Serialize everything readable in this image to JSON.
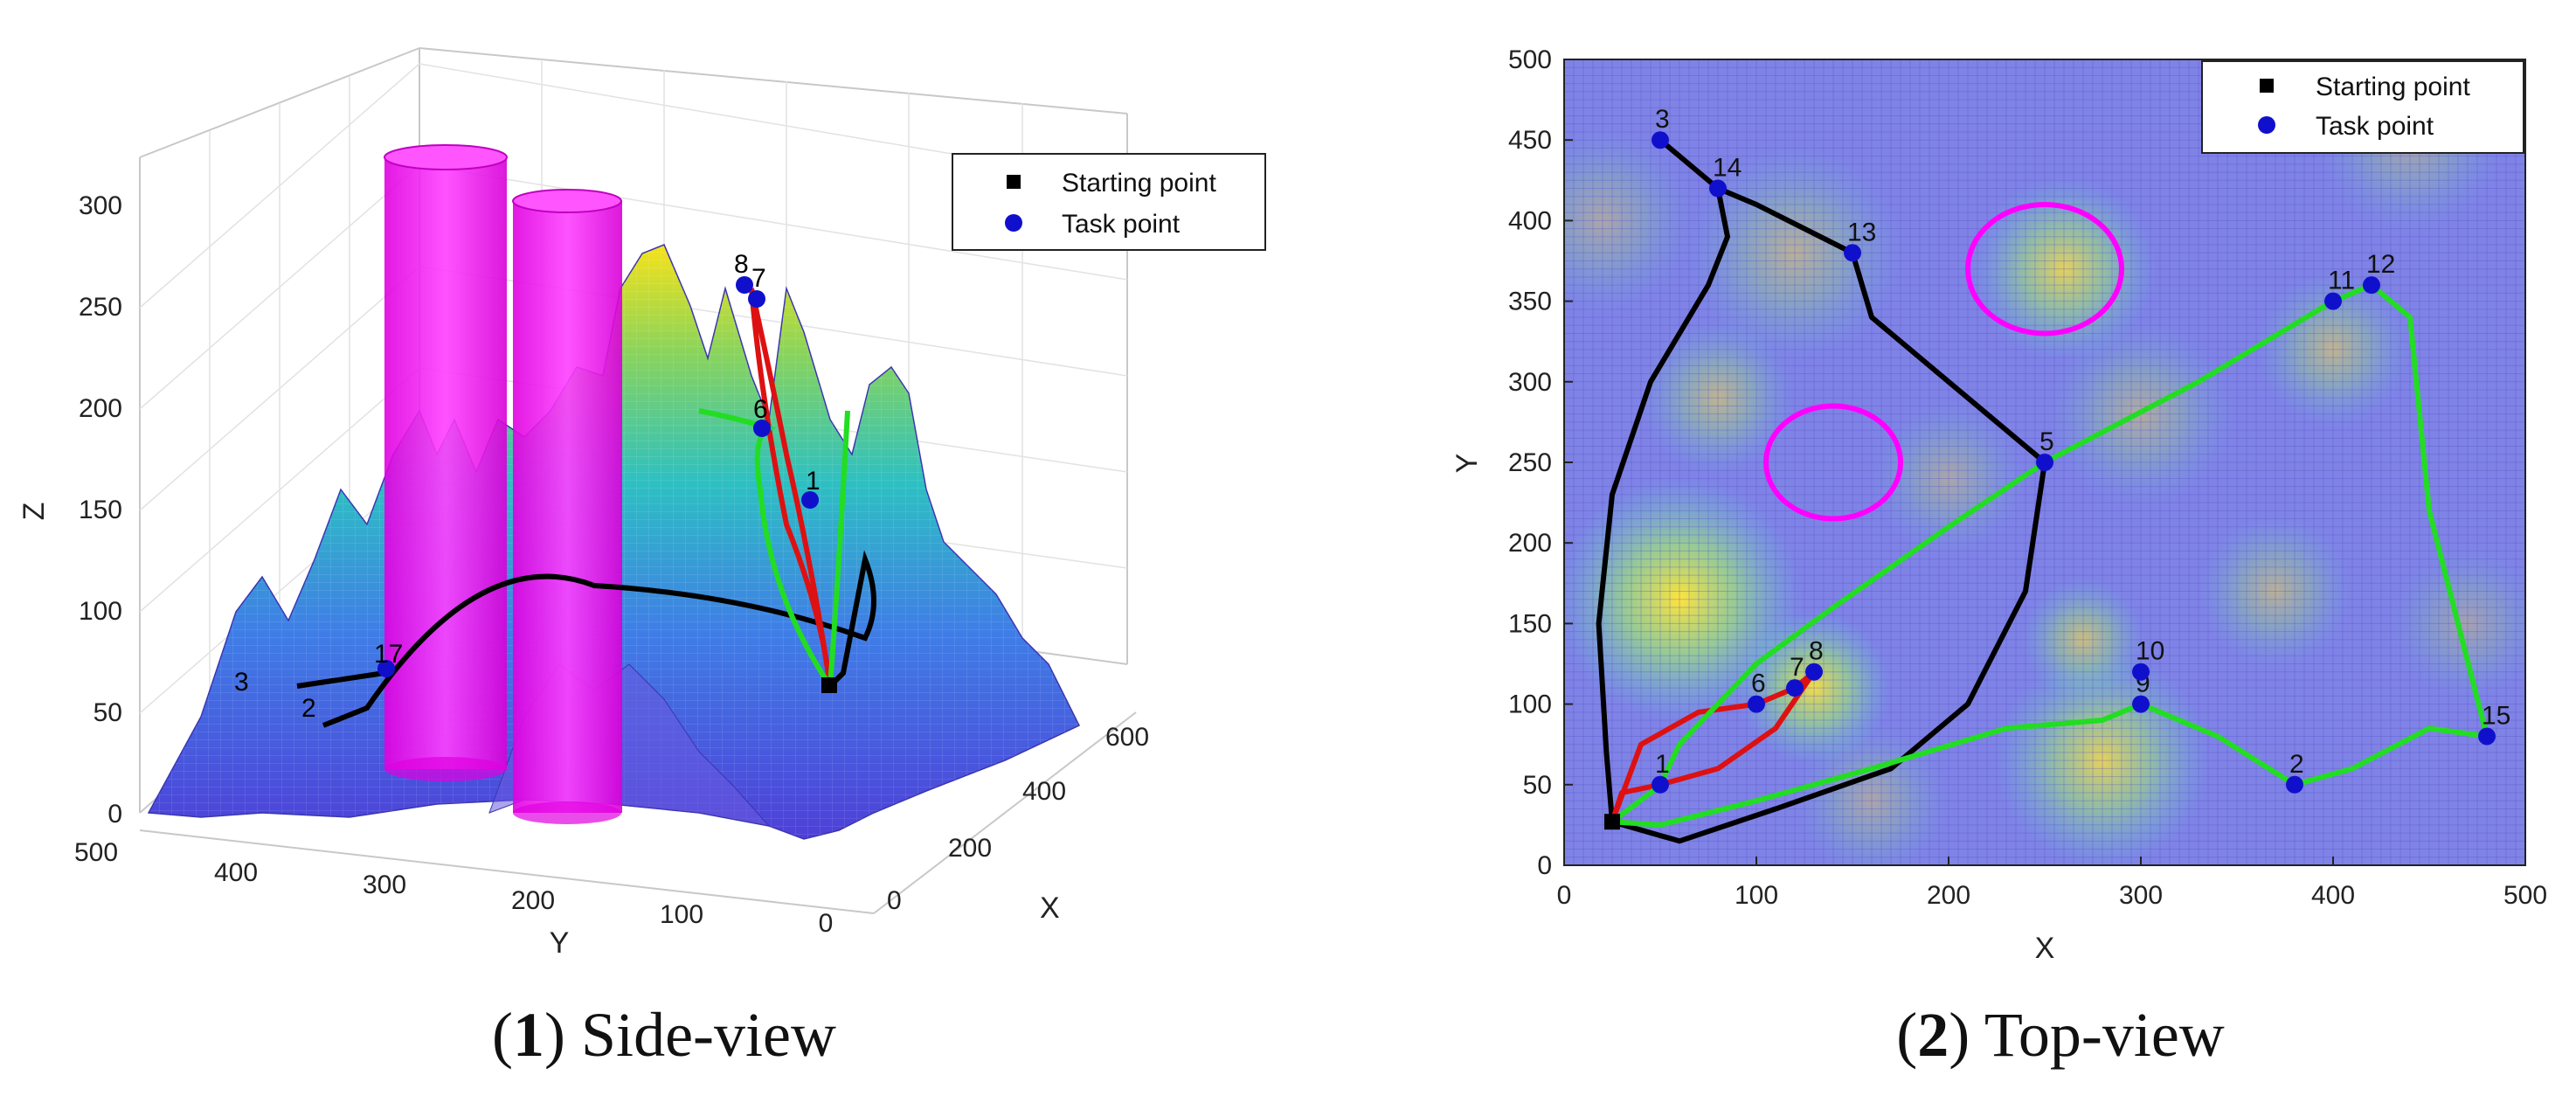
{
  "chart_data": [
    {
      "type": "surface-3d",
      "caption_num": "1",
      "caption_text": " Side-view",
      "xlabel": "X",
      "ylabel": "Y",
      "zlabel": "Z",
      "x_ticks": [
        "0",
        "200",
        "400",
        "600"
      ],
      "y_ticks": [
        "500",
        "400",
        "300",
        "200",
        "100",
        "0"
      ],
      "z_ticks": [
        "0",
        "50",
        "100",
        "150",
        "200",
        "250",
        "300"
      ],
      "zlim": [
        0,
        300
      ],
      "legend": [
        {
          "label": "Starting point",
          "marker": "square",
          "color": "#000000"
        },
        {
          "label": "Task point",
          "marker": "circle",
          "color": "#0000cc"
        }
      ],
      "point_labels": [
        "8",
        "7",
        "6",
        "1",
        "17",
        "2",
        "3"
      ],
      "obstacles": [
        {
          "shape": "cylinder",
          "color": "#ff00ff"
        },
        {
          "shape": "cylinder",
          "color": "#ff00ff"
        }
      ],
      "colors": {
        "surface_low": "#4b3fd6",
        "surface_mid": "#29b6c6",
        "surface_high": "#f5e51a",
        "path_black": "#000000",
        "path_red": "#dd1111",
        "path_green": "#22dd22"
      }
    },
    {
      "type": "heatmap",
      "caption_num": "2",
      "caption_text": " Top-view",
      "xlabel": "X",
      "ylabel": "Y",
      "xlim": [
        0,
        500
      ],
      "ylim": [
        0,
        500
      ],
      "x_ticks": [
        "0",
        "100",
        "200",
        "300",
        "400",
        "500"
      ],
      "y_ticks": [
        "0",
        "50",
        "100",
        "150",
        "200",
        "250",
        "300",
        "350",
        "400",
        "450",
        "500"
      ],
      "grid": true,
      "legend_position": "top-right",
      "legend": [
        {
          "label": "Starting point",
          "marker": "square",
          "color": "#000000"
        },
        {
          "label": "Task point",
          "marker": "circle",
          "color": "#0000cc"
        }
      ],
      "starting_point": {
        "x": 25,
        "y": 27
      },
      "task_points": [
        {
          "label": "1",
          "x": 50,
          "y": 50
        },
        {
          "label": "2",
          "x": 380,
          "y": 50
        },
        {
          "label": "3",
          "x": 50,
          "y": 450
        },
        {
          "label": "5",
          "x": 250,
          "y": 250
        },
        {
          "label": "6",
          "x": 100,
          "y": 100
        },
        {
          "label": "7",
          "x": 120,
          "y": 110
        },
        {
          "label": "8",
          "x": 130,
          "y": 120
        },
        {
          "label": "9",
          "x": 300,
          "y": 100
        },
        {
          "label": "10",
          "x": 300,
          "y": 120
        },
        {
          "label": "11",
          "x": 400,
          "y": 350
        },
        {
          "label": "12",
          "x": 420,
          "y": 360
        },
        {
          "label": "13",
          "x": 150,
          "y": 380
        },
        {
          "label": "14",
          "x": 80,
          "y": 420
        },
        {
          "label": "15",
          "x": 480,
          "y": 80
        }
      ],
      "obstacles": [
        {
          "shape": "circle",
          "cx": 140,
          "cy": 250,
          "r": 35,
          "color": "#ff00ff"
        },
        {
          "shape": "circle",
          "cx": 250,
          "cy": 370,
          "r": 40,
          "color": "#ff00ff"
        }
      ],
      "hotspots": [
        {
          "x": 60,
          "y": 165,
          "r": 40,
          "intensity": 1.0
        },
        {
          "x": 130,
          "y": 110,
          "r": 25,
          "intensity": 0.9
        },
        {
          "x": 280,
          "y": 65,
          "r": 35,
          "intensity": 0.8
        },
        {
          "x": 260,
          "y": 370,
          "r": 30,
          "intensity": 0.8
        },
        {
          "x": 270,
          "y": 140,
          "r": 20,
          "intensity": 0.6
        },
        {
          "x": 400,
          "y": 320,
          "r": 25,
          "intensity": 0.5
        },
        {
          "x": 370,
          "y": 170,
          "r": 25,
          "intensity": 0.45
        },
        {
          "x": 300,
          "y": 280,
          "r": 30,
          "intensity": 0.4
        },
        {
          "x": 120,
          "y": 380,
          "r": 35,
          "intensity": 0.45
        },
        {
          "x": 80,
          "y": 290,
          "r": 25,
          "intensity": 0.5
        },
        {
          "x": 20,
          "y": 400,
          "r": 30,
          "intensity": 0.35
        },
        {
          "x": 440,
          "y": 450,
          "r": 30,
          "intensity": 0.35
        },
        {
          "x": 200,
          "y": 240,
          "r": 25,
          "intensity": 0.35
        },
        {
          "x": 160,
          "y": 40,
          "r": 25,
          "intensity": 0.35
        },
        {
          "x": 470,
          "y": 150,
          "r": 25,
          "intensity": 0.3
        }
      ],
      "paths": [
        {
          "color": "#000000",
          "points": [
            [
              25,
              27
            ],
            [
              60,
              15
            ],
            [
              110,
              35
            ],
            [
              170,
              60
            ],
            [
              210,
              100
            ],
            [
              240,
              170
            ],
            [
              250,
              250
            ],
            [
              200,
              300
            ],
            [
              160,
              340
            ],
            [
              150,
              380
            ],
            [
              100,
              410
            ],
            [
              80,
              420
            ],
            [
              50,
              450
            ],
            [
              80,
              420
            ],
            [
              85,
              390
            ],
            [
              75,
              360
            ],
            [
              45,
              300
            ],
            [
              25,
              230
            ],
            [
              18,
              150
            ],
            [
              22,
              70
            ],
            [
              25,
              27
            ]
          ]
        },
        {
          "color": "#dd1111",
          "points": [
            [
              25,
              27
            ],
            [
              30,
              45
            ],
            [
              50,
              50
            ],
            [
              80,
              60
            ],
            [
              110,
              85
            ],
            [
              130,
              120
            ],
            [
              120,
              110
            ],
            [
              100,
              100
            ],
            [
              70,
              95
            ],
            [
              40,
              75
            ],
            [
              25,
              27
            ]
          ]
        },
        {
          "color": "#22dd22",
          "points": [
            [
              25,
              27
            ],
            [
              45,
              45
            ],
            [
              50,
              50
            ],
            [
              60,
              75
            ],
            [
              80,
              100
            ],
            [
              100,
              125
            ],
            [
              140,
              160
            ],
            [
              200,
              210
            ],
            [
              250,
              250
            ],
            [
              330,
              300
            ],
            [
              400,
              350
            ],
            [
              420,
              360
            ],
            [
              440,
              340
            ],
            [
              450,
              220
            ],
            [
              465,
              150
            ],
            [
              480,
              80
            ],
            [
              450,
              85
            ],
            [
              410,
              60
            ],
            [
              380,
              50
            ],
            [
              340,
              80
            ],
            [
              300,
              100
            ],
            [
              280,
              90
            ],
            [
              230,
              85
            ],
            [
              160,
              60
            ],
            [
              100,
              40
            ],
            [
              50,
              25
            ],
            [
              25,
              27
            ]
          ]
        }
      ]
    }
  ]
}
